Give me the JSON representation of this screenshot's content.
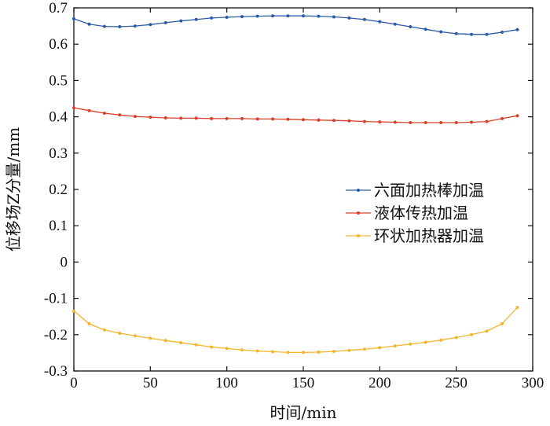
{
  "chart_data": {
    "type": "line",
    "xlabel": "时间/min",
    "ylabel": "位移场Z分量/mm",
    "xlim": [
      0,
      300
    ],
    "ylim": [
      -0.3,
      0.7
    ],
    "xticks": [
      0,
      50,
      100,
      150,
      200,
      250,
      300
    ],
    "yticks": [
      0.7,
      0.6,
      0.5,
      0.4,
      0.3,
      0.2,
      0.1,
      0,
      -0.1,
      -0.2,
      -0.3
    ],
    "grid": false,
    "legend_position": "right",
    "series": [
      {
        "name": "六面加热棒加温",
        "color": "#2b5ba8",
        "x": [
          0,
          10,
          20,
          30,
          40,
          50,
          60,
          70,
          80,
          90,
          100,
          110,
          120,
          130,
          140,
          150,
          160,
          170,
          180,
          190,
          200,
          210,
          220,
          230,
          240,
          250,
          260,
          270,
          280,
          290
        ],
        "y": [
          0.67,
          0.655,
          0.649,
          0.648,
          0.65,
          0.654,
          0.659,
          0.664,
          0.668,
          0.672,
          0.674,
          0.676,
          0.677,
          0.678,
          0.678,
          0.678,
          0.677,
          0.675,
          0.672,
          0.668,
          0.662,
          0.655,
          0.648,
          0.641,
          0.634,
          0.629,
          0.627,
          0.627,
          0.633,
          0.64
        ]
      },
      {
        "name": "液体传热加温",
        "color": "#d9402a",
        "x": [
          0,
          10,
          20,
          30,
          40,
          50,
          60,
          70,
          80,
          90,
          100,
          110,
          120,
          130,
          140,
          150,
          160,
          170,
          180,
          190,
          200,
          210,
          220,
          230,
          240,
          250,
          260,
          270,
          280,
          290
        ],
        "y": [
          0.425,
          0.417,
          0.41,
          0.405,
          0.401,
          0.399,
          0.397,
          0.396,
          0.396,
          0.395,
          0.395,
          0.395,
          0.394,
          0.394,
          0.393,
          0.392,
          0.391,
          0.39,
          0.389,
          0.387,
          0.386,
          0.385,
          0.384,
          0.384,
          0.384,
          0.384,
          0.385,
          0.387,
          0.395,
          0.403
        ]
      },
      {
        "name": "环状加热器加温",
        "color": "#f2b52c",
        "x": [
          0,
          10,
          20,
          30,
          40,
          50,
          60,
          70,
          80,
          90,
          100,
          110,
          120,
          130,
          140,
          150,
          160,
          170,
          180,
          190,
          200,
          210,
          220,
          230,
          240,
          250,
          260,
          270,
          280,
          290
        ],
        "y": [
          -0.135,
          -0.17,
          -0.187,
          -0.196,
          -0.203,
          -0.21,
          -0.216,
          -0.222,
          -0.228,
          -0.234,
          -0.238,
          -0.242,
          -0.245,
          -0.247,
          -0.249,
          -0.249,
          -0.248,
          -0.246,
          -0.243,
          -0.24,
          -0.236,
          -0.231,
          -0.226,
          -0.221,
          -0.215,
          -0.208,
          -0.2,
          -0.19,
          -0.17,
          -0.125
        ]
      }
    ]
  }
}
